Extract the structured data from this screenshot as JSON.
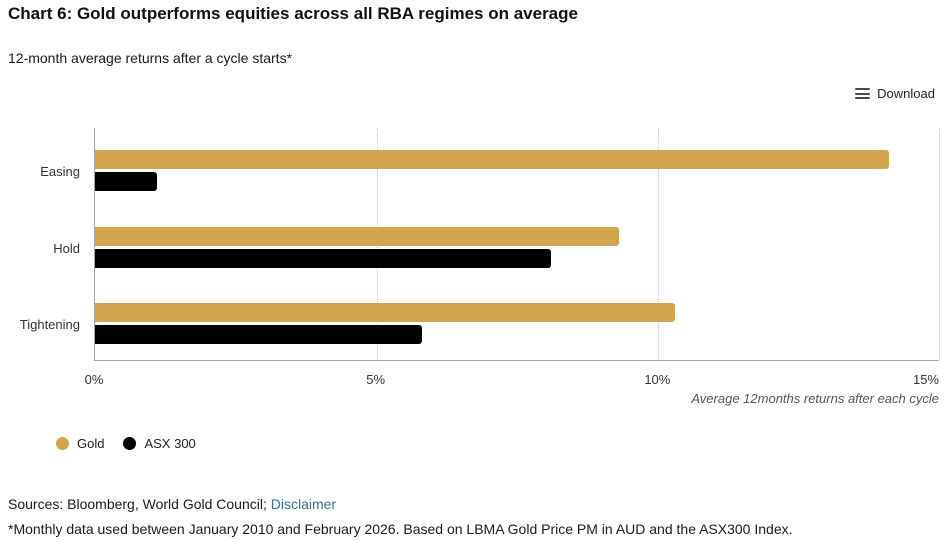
{
  "header": {
    "title": "Chart 6: Gold outperforms equities across all RBA regimes on average",
    "subtitle": "12-month average returns after a cycle starts*"
  },
  "toolbar": {
    "download_label": "Download"
  },
  "chart_data": {
    "type": "bar",
    "orientation": "horizontal",
    "categories": [
      "Easing",
      "Hold",
      "Tightening"
    ],
    "series": [
      {
        "name": "Gold",
        "color": "#D2A54E",
        "values": [
          14.1,
          9.3,
          10.3
        ]
      },
      {
        "name": "ASX 300",
        "color": "#000000",
        "values": [
          1.1,
          8.1,
          5.8
        ]
      }
    ],
    "x_ticks": [
      "0%",
      "5%",
      "10%",
      "15%"
    ],
    "x_tick_values": [
      0,
      5,
      10,
      15
    ],
    "xlim": [
      0,
      15
    ],
    "x_axis_note": "Average 12months returns after each cycle",
    "grid": "vertical-dotted",
    "legend_position": "bottom-left"
  },
  "footer": {
    "sources_prefix": "Sources: Bloomberg, World Gold Council; ",
    "disclaimer_link": "Disclaimer",
    "footnote": "*Monthly data used between January 2010 and February 2026. Based on LBMA Gold Price PM in AUD and the ASX300 Index."
  },
  "colors": {
    "gold": "#D2A54E",
    "asx": "#000000",
    "link": "#3A6E99",
    "axis_line": "#A6A6A6",
    "gridline": "#C9C9C9"
  }
}
